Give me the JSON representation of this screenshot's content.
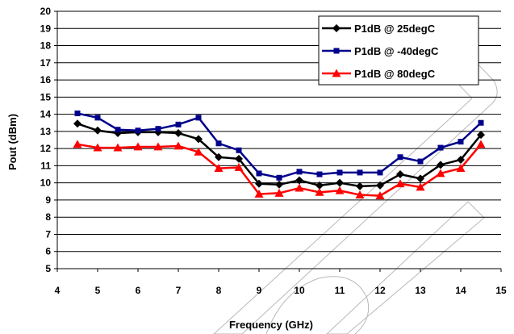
{
  "chart_data": {
    "type": "line",
    "xlabel": "Frequency (GHz)",
    "ylabel": "Pout (dBm)",
    "xlim": [
      4,
      15
    ],
    "ylim": [
      5,
      20
    ],
    "x_ticks": [
      4,
      5,
      6,
      7,
      8,
      9,
      10,
      11,
      12,
      13,
      14,
      15
    ],
    "y_ticks": [
      5,
      6,
      7,
      8,
      9,
      10,
      11,
      12,
      13,
      14,
      15,
      16,
      17,
      18,
      19,
      20
    ],
    "grid": true,
    "legend_position": "top-right",
    "x": [
      4.5,
      5,
      5.5,
      6,
      6.5,
      7,
      7.5,
      8,
      8.5,
      9,
      9.5,
      10,
      10.5,
      11,
      11.5,
      12,
      12.5,
      13,
      13.5,
      14,
      14.5
    ],
    "series": [
      {
        "name": "P1dB @ 25degC",
        "color": "#000000",
        "marker": "diamond",
        "values": [
          13.45,
          13.05,
          12.9,
          12.95,
          12.95,
          12.9,
          12.55,
          11.5,
          11.4,
          9.95,
          9.9,
          10.15,
          9.85,
          10.0,
          9.8,
          9.85,
          10.5,
          10.25,
          11.05,
          11.35,
          12.8
        ]
      },
      {
        "name": "P1dB @ -40degC",
        "color": "#00008b",
        "marker": "square",
        "values": [
          14.05,
          13.8,
          13.1,
          13.05,
          13.15,
          13.4,
          13.8,
          12.3,
          11.9,
          10.55,
          10.3,
          10.65,
          10.5,
          10.6,
          10.6,
          10.6,
          11.5,
          11.25,
          12.05,
          12.4,
          13.5
        ]
      },
      {
        "name": "P1dB @ 80degC",
        "color": "#ff0000",
        "marker": "triangle",
        "values": [
          12.25,
          12.05,
          12.05,
          12.1,
          12.1,
          12.15,
          11.8,
          10.85,
          10.9,
          9.35,
          9.4,
          9.7,
          9.45,
          9.55,
          9.3,
          9.25,
          9.95,
          9.75,
          10.55,
          10.85,
          12.25
        ]
      }
    ]
  }
}
